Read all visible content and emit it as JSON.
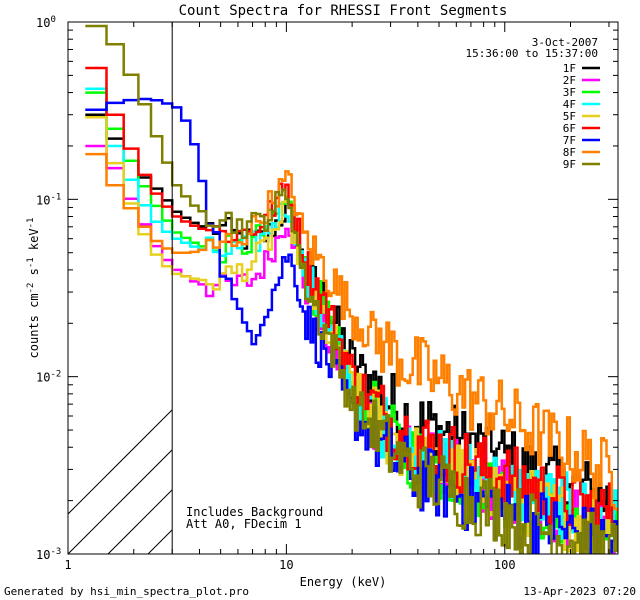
{
  "chart_data": {
    "type": "line",
    "title": "Count Spectra for RHESSI Front Segments",
    "xlabel": "Energy (keV)",
    "ylabel": "counts cm",
    "ylabel_sup1": "-2",
    "ylabel_mid": " s",
    "ylabel_sup2": "-1",
    "ylabel_end": " keV",
    "ylabel_sup3": "-1",
    "x_scale": "log",
    "y_scale": "log",
    "xlim": [
      1,
      330
    ],
    "ylim": [
      0.001,
      1
    ],
    "x_tick_labels": [
      "1",
      "10",
      "100"
    ],
    "y_ticks": [
      {
        "base": "10",
        "exp": "0"
      },
      {
        "base": "10",
        "exp": "-1"
      },
      {
        "base": "10",
        "exp": "-2"
      },
      {
        "base": "10",
        "exp": "-3"
      }
    ],
    "date": "3-Oct-2007",
    "time_range": "15:36:00 to 15:37:00",
    "annotations": [
      "Includes Background",
      "Att A0, FDecim 1"
    ],
    "shaded_region_max_energy": 3,
    "series": [
      {
        "name": "1F",
        "color": "#000000",
        "e": [
          1.2,
          1.5,
          2,
          2.5,
          3,
          3.5,
          4,
          5,
          6,
          7,
          8,
          9,
          10,
          11,
          12,
          14,
          16,
          18,
          20,
          25,
          30,
          35,
          40,
          50,
          60,
          70,
          80,
          100,
          120,
          150,
          200,
          250,
          300,
          330
        ],
        "c": [
          0.3,
          0.22,
          0.14,
          0.11,
          0.085,
          0.075,
          0.07,
          0.068,
          0.06,
          0.058,
          0.062,
          0.075,
          0.09,
          0.06,
          0.04,
          0.03,
          0.022,
          0.016,
          0.012,
          0.009,
          0.007,
          0.006,
          0.0055,
          0.005,
          0.0045,
          0.0042,
          0.004,
          0.0035,
          0.003,
          0.0027,
          0.0024,
          0.0022,
          0.002,
          0.0019
        ]
      },
      {
        "name": "2F",
        "color": "#ff00ff",
        "e": [
          1.2,
          1.5,
          2,
          2.5,
          3,
          3.5,
          4,
          5,
          6,
          7,
          8,
          9,
          10,
          11,
          12,
          14,
          16,
          18,
          20,
          25,
          30,
          35,
          40,
          50,
          60,
          70,
          80,
          100,
          120,
          150,
          200,
          250,
          300,
          330
        ],
        "c": [
          0.2,
          0.15,
          0.08,
          0.05,
          0.04,
          0.035,
          0.033,
          0.032,
          0.033,
          0.036,
          0.045,
          0.06,
          0.08,
          0.05,
          0.032,
          0.022,
          0.015,
          0.011,
          0.008,
          0.0055,
          0.0042,
          0.0036,
          0.0033,
          0.003,
          0.0028,
          0.0026,
          0.0025,
          0.0022,
          0.002,
          0.0018,
          0.0016,
          0.0015,
          0.0014,
          0.0013
        ]
      },
      {
        "name": "3F",
        "color": "#00ff00",
        "e": [
          1.2,
          1.5,
          2,
          2.5,
          3,
          3.5,
          4,
          5,
          6,
          7,
          8,
          9,
          10,
          11,
          12,
          14,
          16,
          18,
          20,
          25,
          30,
          35,
          40,
          50,
          60,
          70,
          80,
          100,
          120,
          150,
          200,
          250,
          300,
          330
        ],
        "c": [
          0.4,
          0.25,
          0.13,
          0.085,
          0.065,
          0.058,
          0.054,
          0.052,
          0.053,
          0.058,
          0.07,
          0.085,
          0.1,
          0.065,
          0.04,
          0.026,
          0.017,
          0.012,
          0.0085,
          0.006,
          0.0045,
          0.0038,
          0.0034,
          0.003,
          0.0028,
          0.0026,
          0.0025,
          0.0022,
          0.002,
          0.0018,
          0.0016,
          0.0015,
          0.0014,
          0.0013
        ]
      },
      {
        "name": "4F",
        "color": "#00ffff",
        "e": [
          1.2,
          1.5,
          2,
          2.5,
          3,
          3.5,
          4,
          5,
          6,
          7,
          8,
          9,
          10,
          11,
          12,
          14,
          16,
          18,
          20,
          25,
          30,
          35,
          40,
          50,
          60,
          70,
          80,
          100,
          120,
          150,
          200,
          250,
          300,
          330
        ],
        "c": [
          0.42,
          0.2,
          0.1,
          0.07,
          0.06,
          0.055,
          0.052,
          0.05,
          0.052,
          0.056,
          0.066,
          0.08,
          0.095,
          0.06,
          0.038,
          0.025,
          0.017,
          0.012,
          0.0085,
          0.006,
          0.0046,
          0.004,
          0.0036,
          0.0032,
          0.003,
          0.0028,
          0.0027,
          0.0024,
          0.0022,
          0.002,
          0.0018,
          0.0017,
          0.0016,
          0.0015
        ]
      },
      {
        "name": "5F",
        "color": "#e8d020",
        "e": [
          1.2,
          1.5,
          2,
          2.5,
          3,
          3.5,
          4,
          5,
          6,
          7,
          8,
          9,
          10,
          11,
          12,
          14,
          16,
          18,
          20,
          25,
          30,
          35,
          40,
          50,
          60,
          70,
          80,
          100,
          120,
          150,
          200,
          250,
          300,
          330
        ],
        "c": [
          0.29,
          0.16,
          0.07,
          0.045,
          0.038,
          0.036,
          0.035,
          0.036,
          0.04,
          0.045,
          0.055,
          0.07,
          0.09,
          0.055,
          0.035,
          0.024,
          0.016,
          0.012,
          0.0085,
          0.006,
          0.0045,
          0.0038,
          0.0034,
          0.003,
          0.0028,
          0.0026,
          0.0025,
          0.0022,
          0.002,
          0.0018,
          0.0016,
          0.0015,
          0.0014,
          0.0013
        ]
      },
      {
        "name": "6F",
        "color": "#ff0000",
        "e": [
          1.2,
          1.5,
          2,
          2.5,
          3,
          3.5,
          4,
          5,
          6,
          7,
          8,
          9,
          10,
          11,
          12,
          14,
          16,
          18,
          20,
          25,
          30,
          35,
          40,
          50,
          60,
          70,
          80,
          100,
          120,
          150,
          200,
          250,
          300,
          330
        ],
        "c": [
          0.55,
          0.3,
          0.15,
          0.1,
          0.08,
          0.072,
          0.068,
          0.065,
          0.064,
          0.068,
          0.08,
          0.1,
          0.12,
          0.075,
          0.045,
          0.03,
          0.02,
          0.014,
          0.01,
          0.007,
          0.0055,
          0.0048,
          0.0043,
          0.0038,
          0.0035,
          0.0032,
          0.003,
          0.0027,
          0.0025,
          0.0022,
          0.002,
          0.0018,
          0.0017,
          0.0016
        ]
      },
      {
        "name": "7F",
        "color": "#0000ff",
        "e": [
          1.2,
          1.5,
          2,
          2.5,
          3,
          3.5,
          4,
          5,
          6,
          7,
          8,
          9,
          10,
          11,
          12,
          14,
          16,
          18,
          20,
          25,
          30,
          35,
          40,
          50,
          60,
          70,
          80,
          100,
          120,
          150,
          200,
          250,
          300,
          330
        ],
        "c": [
          0.32,
          0.35,
          0.37,
          0.36,
          0.33,
          0.25,
          0.12,
          0.04,
          0.02,
          0.018,
          0.025,
          0.035,
          0.05,
          0.035,
          0.022,
          0.015,
          0.011,
          0.008,
          0.006,
          0.0045,
          0.0035,
          0.003,
          0.0027,
          0.0024,
          0.0022,
          0.002,
          0.0019,
          0.0017,
          0.0016,
          0.0015,
          0.0013,
          0.0012,
          0.0012,
          0.0011
        ]
      },
      {
        "name": "8F",
        "color": "#ff8000",
        "e": [
          1.2,
          1.5,
          2,
          2.5,
          3,
          3.5,
          4,
          5,
          6,
          7,
          8,
          9,
          10,
          11,
          12,
          14,
          16,
          18,
          20,
          25,
          30,
          35,
          40,
          50,
          60,
          70,
          80,
          100,
          120,
          150,
          200,
          250,
          300,
          330
        ],
        "c": [
          0.18,
          0.12,
          0.075,
          0.055,
          0.05,
          0.05,
          0.052,
          0.056,
          0.062,
          0.07,
          0.09,
          0.11,
          0.13,
          0.09,
          0.06,
          0.045,
          0.035,
          0.028,
          0.022,
          0.017,
          0.014,
          0.012,
          0.011,
          0.0095,
          0.0085,
          0.0075,
          0.007,
          0.006,
          0.0053,
          0.0045,
          0.0038,
          0.0032,
          0.0028,
          0.0026
        ]
      },
      {
        "name": "9F",
        "color": "#808000",
        "e": [
          1.2,
          1.5,
          2,
          2.5,
          3,
          3.5,
          4,
          5,
          6,
          7,
          8,
          9,
          10,
          11,
          12,
          14,
          16,
          18,
          20,
          25,
          30,
          35,
          40,
          50,
          60,
          70,
          80,
          100,
          120,
          150,
          200,
          250,
          300,
          330
        ],
        "c": [
          0.95,
          0.75,
          0.4,
          0.2,
          0.12,
          0.095,
          0.085,
          0.078,
          0.072,
          0.072,
          0.08,
          0.095,
          0.11,
          0.06,
          0.035,
          0.022,
          0.015,
          0.01,
          0.007,
          0.005,
          0.0038,
          0.0032,
          0.0028,
          0.0025,
          0.0022,
          0.002,
          0.0019,
          0.0017,
          0.0015,
          0.0014,
          0.0012,
          0.0011,
          0.001,
          0.001
        ]
      }
    ]
  },
  "footer": {
    "generator": "Generated by hsi_min_spectra_plot.pro",
    "timestamp": "13-Apr-2023 07:20"
  }
}
